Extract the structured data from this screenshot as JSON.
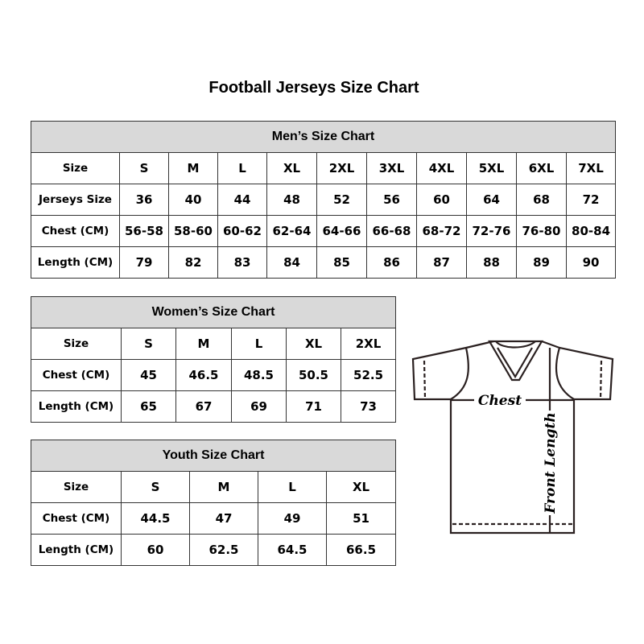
{
  "title": "Football Jerseys Size Chart",
  "men": {
    "heading": "Men’s Size Chart",
    "rows": [
      {
        "label": "Size",
        "cells": [
          "S",
          "M",
          "L",
          "XL",
          "2XL",
          "3XL",
          "4XL",
          "5XL",
          "6XL",
          "7XL"
        ]
      },
      {
        "label": "Jerseys Size",
        "cells": [
          "36",
          "40",
          "44",
          "48",
          "52",
          "56",
          "60",
          "64",
          "68",
          "72"
        ]
      },
      {
        "label": "Chest (CM)",
        "cells": [
          "56-58",
          "58-60",
          "60-62",
          "62-64",
          "64-66",
          "66-68",
          "68-72",
          "72-76",
          "76-80",
          "80-84"
        ]
      },
      {
        "label": "Length (CM)",
        "cells": [
          "79",
          "82",
          "83",
          "84",
          "85",
          "86",
          "87",
          "88",
          "89",
          "90"
        ]
      }
    ]
  },
  "women": {
    "heading": "Women’s Size Chart",
    "rows": [
      {
        "label": "Size",
        "cells": [
          "S",
          "M",
          "L",
          "XL",
          "2XL"
        ]
      },
      {
        "label": "Chest (CM)",
        "cells": [
          "45",
          "46.5",
          "48.5",
          "50.5",
          "52.5"
        ]
      },
      {
        "label": "Length (CM)",
        "cells": [
          "65",
          "67",
          "69",
          "71",
          "73"
        ]
      }
    ]
  },
  "youth": {
    "heading": "Youth Size Chart",
    "rows": [
      {
        "label": "Size",
        "cells": [
          "S",
          "M",
          "L",
          "XL"
        ]
      },
      {
        "label": "Chest (CM)",
        "cells": [
          "44.5",
          "47",
          "49",
          "51"
        ]
      },
      {
        "label": "Length (CM)",
        "cells": [
          "60",
          "62.5",
          "64.5",
          "66.5"
        ]
      }
    ]
  },
  "diagram": {
    "chest_label": "Chest",
    "length_label": "Front Length"
  }
}
